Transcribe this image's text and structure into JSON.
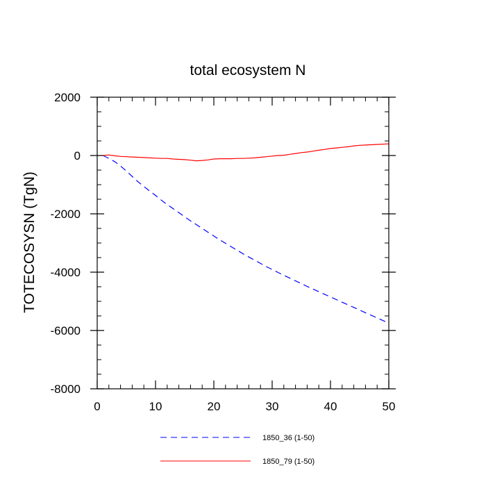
{
  "chart_data": {
    "type": "line",
    "title": "total ecosystem N",
    "xlabel": "",
    "ylabel": "TOTECOSYSN  (TgN)",
    "xlim": [
      0,
      50
    ],
    "ylim": [
      -8000,
      2000
    ],
    "x_ticks": [
      0,
      10,
      20,
      30,
      40,
      50
    ],
    "y_ticks": [
      2000,
      0,
      -2000,
      -4000,
      -6000,
      -8000
    ],
    "grid": false,
    "legend_position": "bottom",
    "series": [
      {
        "name": "1850_36 (1-50)",
        "color": "#0000ff",
        "style": "dashed",
        "x": [
          1,
          2,
          3,
          4,
          5,
          6,
          7,
          8,
          9,
          10,
          11,
          12,
          13,
          14,
          15,
          16,
          17,
          18,
          19,
          20,
          21,
          22,
          23,
          24,
          25,
          26,
          27,
          28,
          29,
          30,
          31,
          32,
          33,
          34,
          35,
          36,
          37,
          38,
          39,
          40,
          41,
          42,
          43,
          44,
          45,
          46,
          47,
          48,
          49,
          50
        ],
        "y": [
          0,
          -100,
          -210,
          -360,
          -530,
          -720,
          -900,
          -1060,
          -1220,
          -1370,
          -1530,
          -1680,
          -1820,
          -1960,
          -2100,
          -2240,
          -2370,
          -2500,
          -2630,
          -2760,
          -2890,
          -3010,
          -3130,
          -3250,
          -3370,
          -3480,
          -3590,
          -3700,
          -3810,
          -3910,
          -4010,
          -4110,
          -4200,
          -4300,
          -4390,
          -4490,
          -4580,
          -4670,
          -4760,
          -4850,
          -4940,
          -5030,
          -5120,
          -5210,
          -5300,
          -5390,
          -5480,
          -5570,
          -5660,
          -5750
        ]
      },
      {
        "name": "1850_79 (1-50)",
        "color": "#ff0000",
        "style": "solid",
        "x": [
          1,
          2,
          3,
          4,
          5,
          6,
          7,
          8,
          9,
          10,
          11,
          12,
          13,
          14,
          15,
          16,
          17,
          18,
          19,
          20,
          21,
          22,
          23,
          24,
          25,
          26,
          27,
          28,
          29,
          30,
          31,
          32,
          33,
          34,
          35,
          36,
          37,
          38,
          39,
          40,
          41,
          42,
          43,
          44,
          45,
          46,
          47,
          48,
          49,
          50
        ],
        "y": [
          0,
          20,
          -10,
          -30,
          -40,
          -50,
          -60,
          -70,
          -80,
          -90,
          -100,
          -100,
          -120,
          -130,
          -140,
          -160,
          -180,
          -170,
          -150,
          -120,
          -110,
          -110,
          -110,
          -100,
          -100,
          -90,
          -80,
          -60,
          -40,
          -20,
          0,
          10,
          40,
          70,
          100,
          120,
          150,
          180,
          210,
          240,
          260,
          280,
          300,
          330,
          350,
          360,
          370,
          380,
          390,
          400
        ]
      }
    ]
  }
}
